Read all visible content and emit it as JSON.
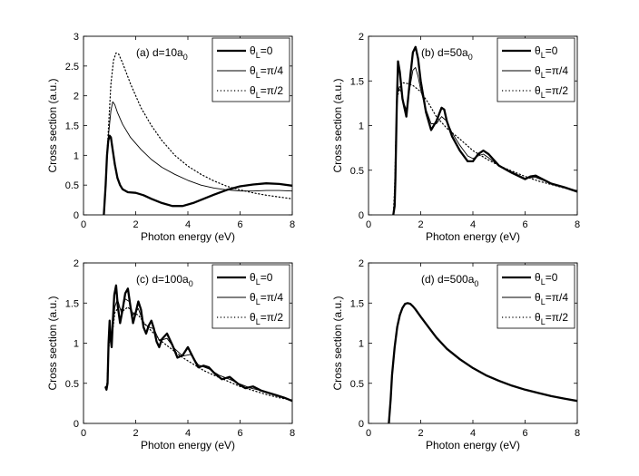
{
  "chart_data": [
    {
      "type": "line",
      "panel_label": "(a) d=10a",
      "panel_sub": "0",
      "xlabel": "Photon energy (eV)",
      "ylabel": "Cross section (a.u.)",
      "xlim": [
        0,
        8
      ],
      "ylim": [
        0,
        3
      ],
      "xticks": [
        "0",
        "2",
        "4",
        "6",
        "8"
      ],
      "yticks": [
        "0",
        "0.5",
        "1",
        "1.5",
        "2",
        "2.5",
        "3"
      ],
      "legend_position": "top-right",
      "series": [
        {
          "name": "θL=0",
          "legend_main": "θ",
          "legend_sub": "L",
          "legend_tail": "=0",
          "style": "thick",
          "x": [
            0.78,
            0.85,
            0.9,
            0.95,
            1.0,
            1.05,
            1.1,
            1.2,
            1.3,
            1.4,
            1.5,
            1.7,
            2.0,
            2.3,
            2.6,
            3.0,
            3.4,
            3.8,
            4.2,
            4.6,
            5.0,
            5.5,
            6.0,
            6.5,
            7.0,
            7.5,
            8.0
          ],
          "y": [
            0,
            0.5,
            1.0,
            1.25,
            1.33,
            1.3,
            1.15,
            0.85,
            0.62,
            0.5,
            0.43,
            0.38,
            0.37,
            0.33,
            0.27,
            0.2,
            0.15,
            0.15,
            0.2,
            0.27,
            0.34,
            0.42,
            0.48,
            0.51,
            0.53,
            0.52,
            0.49
          ]
        },
        {
          "name": "θL=π/4",
          "legend_main": "θ",
          "legend_sub": "L",
          "legend_tail": "=π/4",
          "style": "thin",
          "x": [
            0.78,
            0.85,
            0.95,
            1.05,
            1.12,
            1.2,
            1.3,
            1.5,
            1.8,
            2.2,
            2.6,
            3.0,
            3.5,
            4.0,
            4.5,
            5.0,
            5.5,
            6.0,
            6.5,
            7.0,
            7.5,
            8.0
          ],
          "y": [
            0,
            0.6,
            1.3,
            1.75,
            1.9,
            1.85,
            1.72,
            1.52,
            1.3,
            1.1,
            0.93,
            0.8,
            0.68,
            0.58,
            0.5,
            0.45,
            0.42,
            0.4,
            0.4,
            0.41,
            0.41,
            0.4
          ]
        },
        {
          "name": "θL=π/2",
          "legend_main": "θ",
          "legend_sub": "L",
          "legend_tail": "=π/2",
          "style": "dotted",
          "x": [
            0.78,
            0.85,
            0.95,
            1.05,
            1.15,
            1.25,
            1.35,
            1.5,
            1.8,
            2.2,
            2.6,
            3.0,
            3.5,
            4.0,
            4.5,
            5.0,
            5.5,
            6.0,
            6.5,
            7.0,
            7.5,
            8.0
          ],
          "y": [
            0,
            0.6,
            1.4,
            2.2,
            2.6,
            2.72,
            2.7,
            2.55,
            2.2,
            1.8,
            1.5,
            1.25,
            1.0,
            0.82,
            0.68,
            0.57,
            0.48,
            0.42,
            0.37,
            0.33,
            0.3,
            0.27
          ]
        }
      ]
    },
    {
      "type": "line",
      "panel_label": "(b) d=50a",
      "panel_sub": "0",
      "xlabel": "Photon energy (eV)",
      "ylabel": "Cross section (a.u.)",
      "xlim": [
        0,
        8
      ],
      "ylim": [
        0,
        2
      ],
      "xticks": [
        "0",
        "2",
        "4",
        "6",
        "8"
      ],
      "yticks": [
        "0",
        "0.5",
        "1",
        "1.5",
        "2"
      ],
      "legend_position": "top-right",
      "series": [
        {
          "name": "θL=0",
          "legend_main": "θ",
          "legend_sub": "L",
          "legend_tail": "=0",
          "style": "thick",
          "x": [
            0.95,
            1.0,
            1.03,
            1.08,
            1.13,
            1.2,
            1.3,
            1.45,
            1.6,
            1.7,
            1.8,
            1.9,
            2.0,
            2.2,
            2.4,
            2.6,
            2.8,
            2.9,
            3.0,
            3.2,
            3.5,
            3.8,
            4.0,
            4.2,
            4.4,
            4.6,
            5.0,
            5.5,
            6.0,
            6.2,
            6.4,
            6.6,
            7.0,
            7.5,
            8.0
          ],
          "y": [
            0,
            0.1,
            0.4,
            1.2,
            1.72,
            1.6,
            1.3,
            1.1,
            1.55,
            1.82,
            1.88,
            1.75,
            1.5,
            1.15,
            0.95,
            1.05,
            1.2,
            1.18,
            1.05,
            0.88,
            0.72,
            0.6,
            0.6,
            0.68,
            0.72,
            0.68,
            0.55,
            0.47,
            0.4,
            0.43,
            0.44,
            0.41,
            0.35,
            0.31,
            0.26
          ]
        },
        {
          "name": "θL=π/4",
          "legend_main": "θ",
          "legend_sub": "L",
          "legend_tail": "=π/4",
          "style": "thin",
          "x": [
            0.95,
            1.0,
            1.05,
            1.1,
            1.15,
            1.25,
            1.35,
            1.45,
            1.6,
            1.7,
            1.8,
            1.9,
            2.0,
            2.2,
            2.4,
            2.6,
            2.8,
            3.0,
            3.2,
            3.5,
            3.8,
            4.0,
            4.2,
            4.4,
            4.6,
            5.0,
            5.5,
            6.0,
            6.4,
            7.0,
            7.5,
            8.0
          ],
          "y": [
            0,
            0.2,
            0.8,
            1.35,
            1.42,
            1.38,
            1.25,
            1.18,
            1.45,
            1.62,
            1.65,
            1.55,
            1.4,
            1.18,
            1.02,
            1.02,
            1.1,
            1.05,
            0.92,
            0.78,
            0.66,
            0.63,
            0.66,
            0.68,
            0.64,
            0.55,
            0.48,
            0.41,
            0.42,
            0.35,
            0.31,
            0.27
          ]
        },
        {
          "name": "θL=π/2",
          "legend_main": "θ",
          "legend_sub": "L",
          "legend_tail": "=π/2",
          "style": "dotted",
          "x": [
            0.95,
            1.0,
            1.05,
            1.1,
            1.2,
            1.3,
            1.5,
            1.7,
            2.0,
            2.3,
            2.6,
            3.0,
            3.5,
            4.0,
            4.5,
            5.0,
            5.5,
            6.0,
            6.5,
            7.0,
            7.5,
            8.0
          ],
          "y": [
            0,
            0.3,
            0.9,
            1.3,
            1.45,
            1.48,
            1.47,
            1.45,
            1.38,
            1.25,
            1.1,
            0.97,
            0.85,
            0.72,
            0.63,
            0.55,
            0.49,
            0.43,
            0.38,
            0.34,
            0.3,
            0.27
          ]
        }
      ]
    },
    {
      "type": "line",
      "panel_label": "(c) d=100a",
      "panel_sub": "0",
      "xlabel": "Photon energy (eV)",
      "ylabel": "Cross section (a.u.)",
      "xlim": [
        0,
        8
      ],
      "ylim": [
        0,
        2
      ],
      "xticks": [
        "0",
        "2",
        "4",
        "6",
        "8"
      ],
      "yticks": [
        "0",
        "0.5",
        "1",
        "1.5",
        "2"
      ],
      "legend_position": "top-right",
      "series": [
        {
          "name": "θL=0",
          "legend_main": "θ",
          "legend_sub": "L",
          "legend_tail": "=0",
          "style": "thick",
          "x": [
            0.85,
            0.88,
            0.92,
            0.96,
            1.0,
            1.04,
            1.08,
            1.12,
            1.18,
            1.25,
            1.32,
            1.4,
            1.5,
            1.6,
            1.7,
            1.8,
            1.9,
            2.0,
            2.1,
            2.2,
            2.3,
            2.4,
            2.5,
            2.6,
            2.7,
            2.8,
            2.9,
            3.0,
            3.2,
            3.4,
            3.6,
            3.8,
            4.0,
            4.2,
            4.4,
            4.6,
            4.8,
            5.0,
            5.3,
            5.6,
            5.9,
            6.2,
            6.5,
            6.8,
            7.1,
            7.4,
            7.7,
            8.0
          ],
          "y": [
            0.45,
            0.42,
            0.5,
            1.0,
            1.28,
            1.05,
            0.95,
            1.25,
            1.6,
            1.72,
            1.45,
            1.25,
            1.42,
            1.62,
            1.68,
            1.45,
            1.25,
            1.38,
            1.52,
            1.42,
            1.2,
            1.12,
            1.22,
            1.28,
            1.18,
            1.02,
            0.95,
            1.05,
            1.12,
            0.98,
            0.82,
            0.85,
            0.95,
            0.82,
            0.7,
            0.72,
            0.7,
            0.63,
            0.55,
            0.58,
            0.5,
            0.44,
            0.46,
            0.41,
            0.38,
            0.35,
            0.32,
            0.28
          ]
        },
        {
          "name": "θL=π/4",
          "legend_main": "θ",
          "legend_sub": "L",
          "legend_tail": "=π/4",
          "style": "thin",
          "x": [
            0.85,
            0.9,
            0.95,
            1.0,
            1.1,
            1.2,
            1.3,
            1.45,
            1.6,
            1.75,
            1.9,
            2.1,
            2.3,
            2.5,
            2.7,
            2.9,
            3.2,
            3.5,
            3.8,
            4.1,
            4.4,
            4.8,
            5.2,
            5.6,
            6.0,
            6.4,
            6.8,
            7.2,
            7.6,
            8.0
          ],
          "y": [
            0.45,
            0.48,
            0.9,
            1.15,
            1.1,
            1.45,
            1.55,
            1.38,
            1.55,
            1.52,
            1.35,
            1.43,
            1.25,
            1.2,
            1.18,
            1.03,
            1.06,
            0.93,
            0.84,
            0.86,
            0.73,
            0.68,
            0.6,
            0.55,
            0.49,
            0.44,
            0.41,
            0.37,
            0.33,
            0.29
          ]
        },
        {
          "name": "θL=π/2",
          "legend_main": "θ",
          "legend_sub": "L",
          "legend_tail": "=π/2",
          "style": "dotted",
          "x": [
            0.85,
            0.9,
            0.95,
            1.0,
            1.1,
            1.2,
            1.35,
            1.5,
            1.7,
            1.9,
            2.1,
            2.4,
            2.7,
            3.0,
            3.4,
            3.8,
            4.2,
            4.6,
            5.0,
            5.5,
            6.0,
            6.5,
            7.0,
            7.5,
            8.0
          ],
          "y": [
            0.45,
            0.5,
            0.85,
            1.08,
            1.1,
            1.38,
            1.45,
            1.4,
            1.45,
            1.38,
            1.35,
            1.22,
            1.12,
            1.02,
            0.92,
            0.82,
            0.74,
            0.66,
            0.6,
            0.53,
            0.46,
            0.41,
            0.36,
            0.32,
            0.29
          ]
        }
      ]
    },
    {
      "type": "line",
      "panel_label": "(d) d=500a",
      "panel_sub": "0",
      "xlabel": "Photon energy (eV)",
      "ylabel": "Cross section (a.u.)",
      "xlim": [
        0,
        8
      ],
      "ylim": [
        0,
        2
      ],
      "xticks": [
        "0",
        "2",
        "4",
        "6",
        "8"
      ],
      "yticks": [
        "0",
        "0.5",
        "1",
        "1.5",
        "2"
      ],
      "legend_position": "top-right",
      "series": [
        {
          "name": "θL=0",
          "legend_main": "θ",
          "legend_sub": "L",
          "legend_tail": "=0",
          "style": "thick",
          "x": [
            0.78,
            0.85,
            0.9,
            1.0,
            1.1,
            1.2,
            1.3,
            1.4,
            1.5,
            1.6,
            1.7,
            1.8,
            2.0,
            2.3,
            2.6,
            3.0,
            3.5,
            4.0,
            4.5,
            5.0,
            5.5,
            6.0,
            6.5,
            7.0,
            7.5,
            8.0
          ],
          "y": [
            0,
            0.3,
            0.6,
            0.95,
            1.2,
            1.35,
            1.44,
            1.49,
            1.5,
            1.49,
            1.46,
            1.42,
            1.33,
            1.2,
            1.07,
            0.93,
            0.8,
            0.69,
            0.6,
            0.53,
            0.47,
            0.42,
            0.38,
            0.34,
            0.31,
            0.28
          ]
        },
        {
          "name": "θL=π/4",
          "legend_main": "θ",
          "legend_sub": "L",
          "legend_tail": "=π/4",
          "style": "thin",
          "x": [
            0.78,
            0.85,
            0.9,
            1.0,
            1.1,
            1.2,
            1.3,
            1.4,
            1.5,
            1.6,
            1.7,
            1.8,
            2.0,
            2.3,
            2.6,
            3.0,
            3.5,
            4.0,
            4.5,
            5.0,
            5.5,
            6.0,
            6.5,
            7.0,
            7.5,
            8.0
          ],
          "y": [
            0,
            0.3,
            0.6,
            0.95,
            1.2,
            1.35,
            1.44,
            1.49,
            1.5,
            1.49,
            1.46,
            1.42,
            1.33,
            1.2,
            1.07,
            0.93,
            0.8,
            0.69,
            0.6,
            0.53,
            0.47,
            0.42,
            0.38,
            0.34,
            0.31,
            0.28
          ]
        },
        {
          "name": "θL=π/2",
          "legend_main": "θ",
          "legend_sub": "L",
          "legend_tail": "=π/2",
          "style": "dotted",
          "x": [
            0.78,
            0.85,
            0.9,
            1.0,
            1.1,
            1.2,
            1.3,
            1.4,
            1.5,
            1.6,
            1.7,
            1.8,
            2.0,
            2.3,
            2.6,
            3.0,
            3.5,
            4.0,
            4.5,
            5.0,
            5.5,
            6.0,
            6.5,
            7.0,
            7.5,
            8.0
          ],
          "y": [
            0,
            0.3,
            0.6,
            0.95,
            1.2,
            1.35,
            1.44,
            1.49,
            1.5,
            1.49,
            1.46,
            1.42,
            1.33,
            1.2,
            1.07,
            0.93,
            0.8,
            0.69,
            0.6,
            0.53,
            0.47,
            0.42,
            0.38,
            0.34,
            0.31,
            0.28
          ]
        }
      ]
    }
  ]
}
